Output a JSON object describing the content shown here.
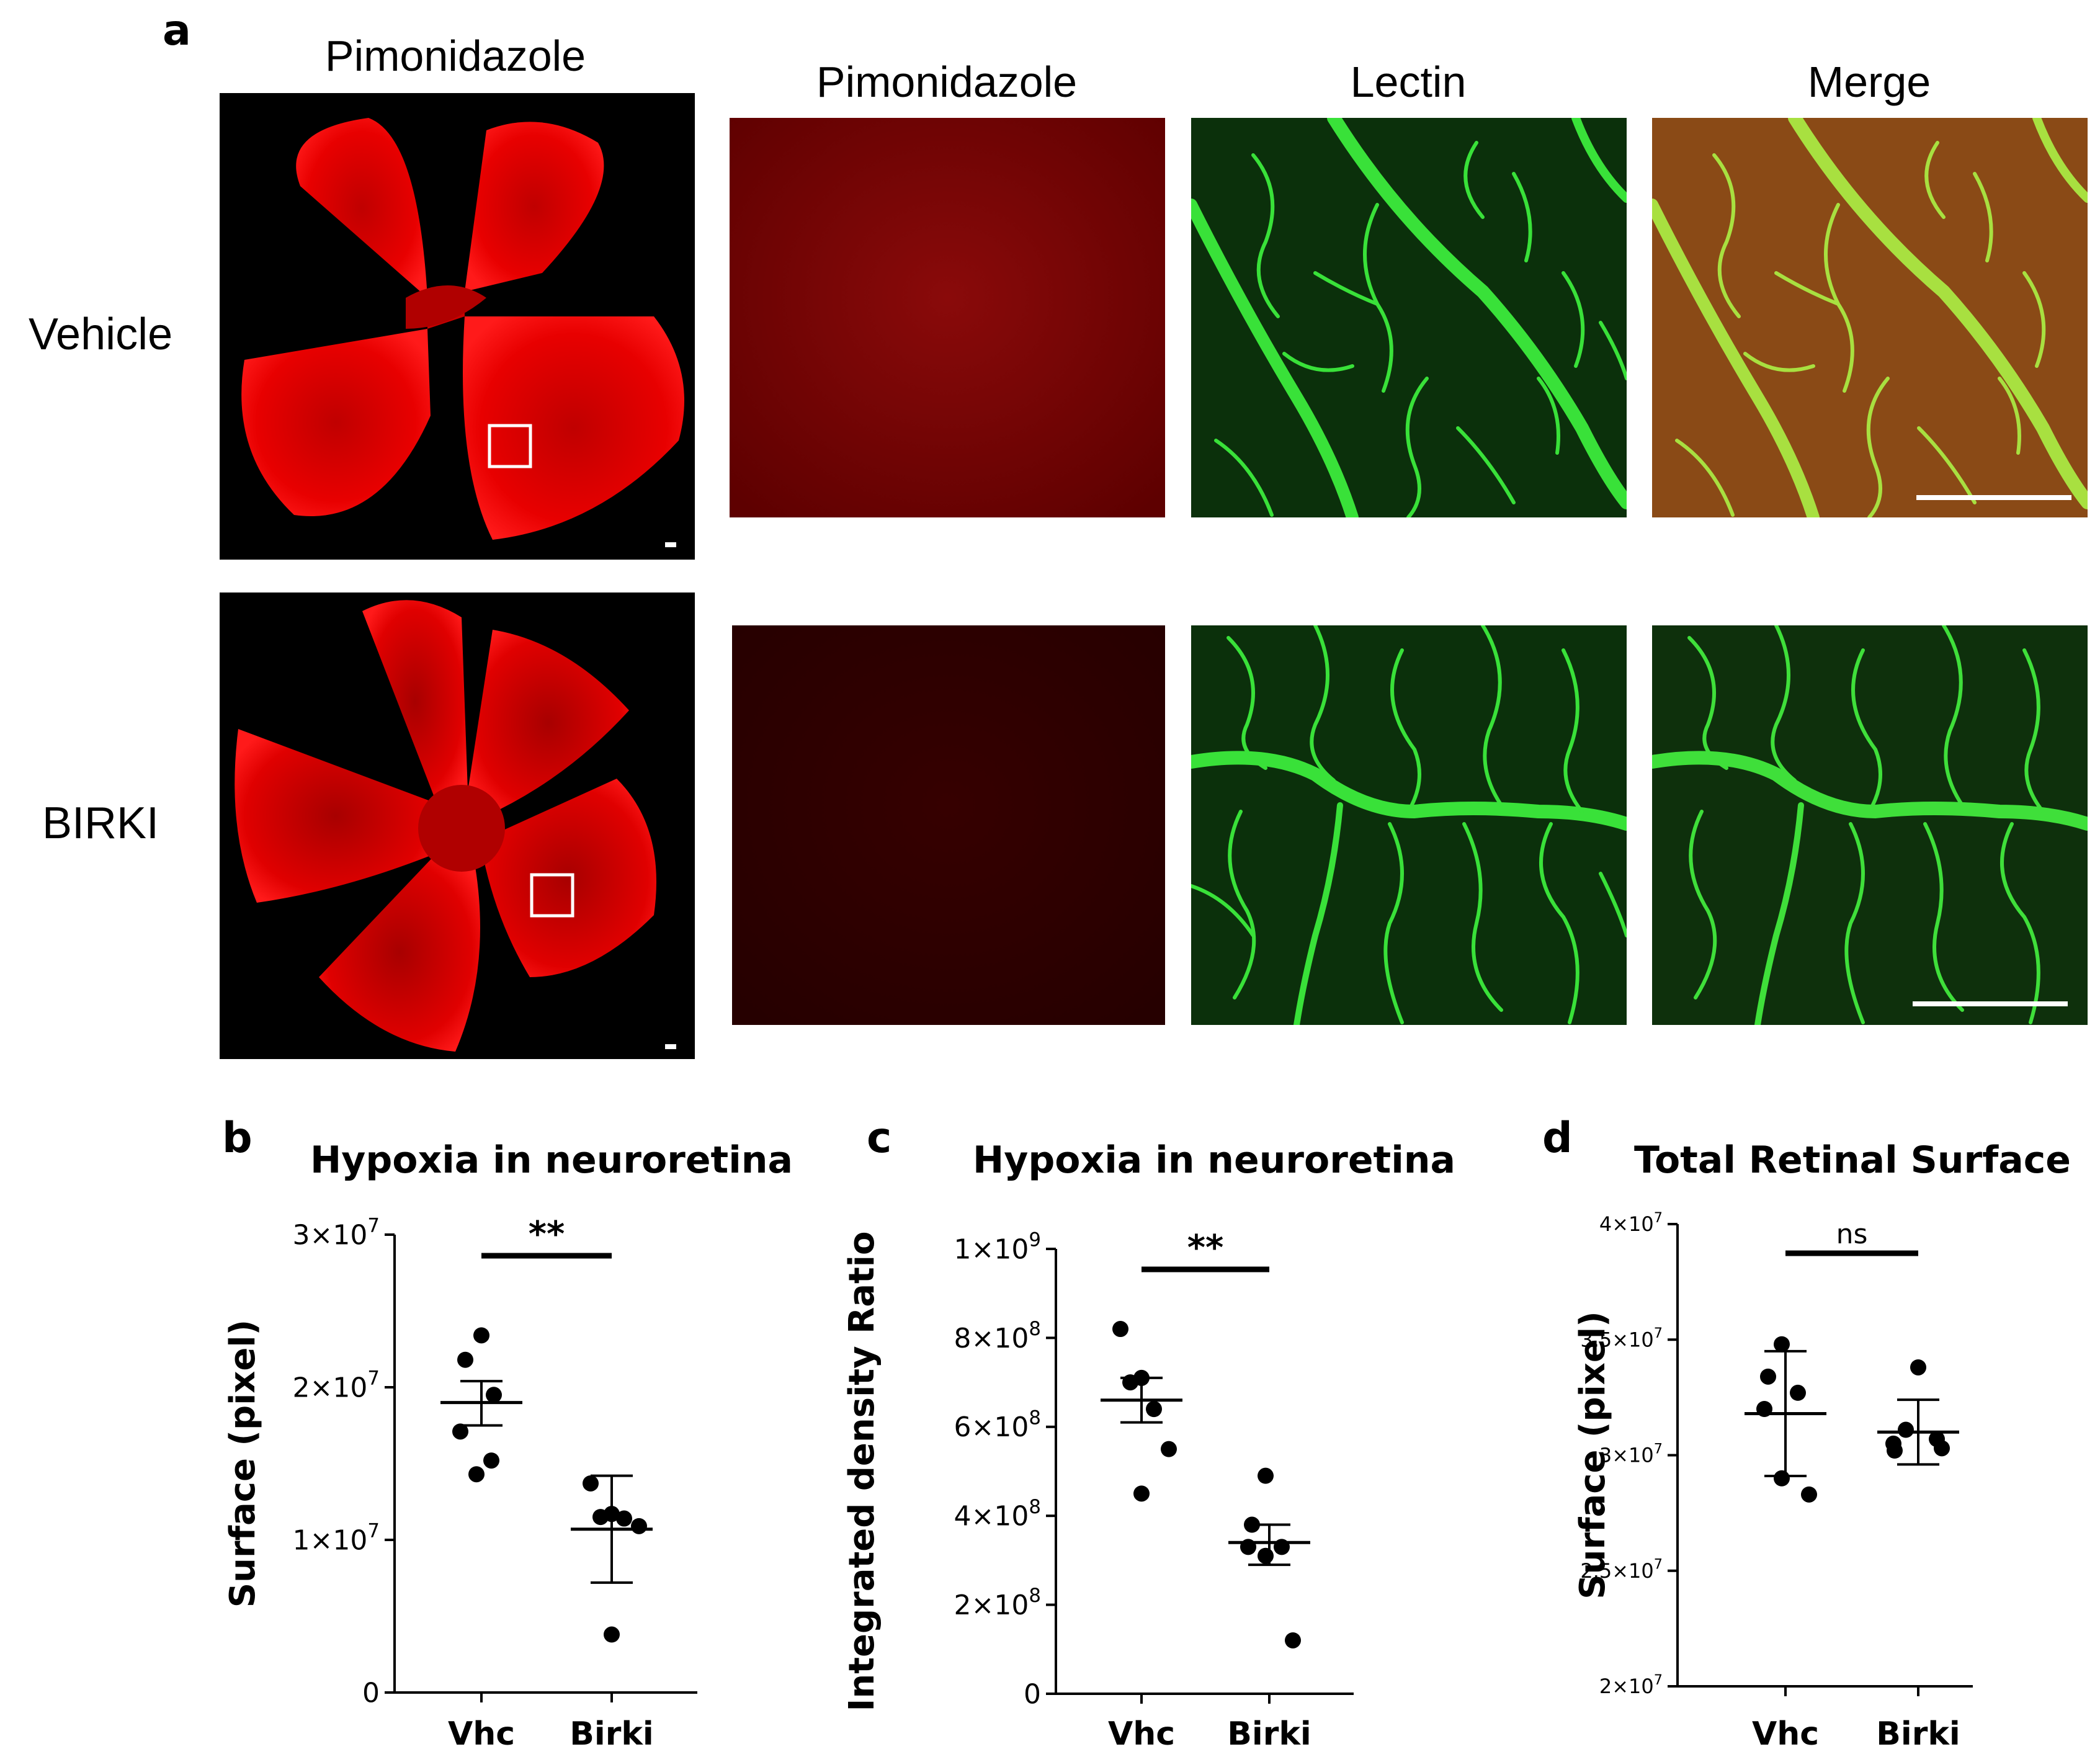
{
  "figure": {
    "panel_a": {
      "letter": "a",
      "overview_header": "Pimonidazole",
      "column_headers": [
        "Pimonidazole",
        "Lectin",
        "Merge"
      ],
      "rows": [
        {
          "label": "Vehicle",
          "stain_level": 0.55
        },
        {
          "label": "BIRKI",
          "stain_level": 0.2
        }
      ],
      "colors": {
        "pimonidazole": "#e00000",
        "lectin": "#1ecf1e",
        "background": "#000000"
      }
    },
    "panel_letters": {
      "b": "b",
      "c": "c",
      "d": "d"
    }
  },
  "chart_data": [
    {
      "type": "scatter",
      "panel": "b",
      "title": "Hypoxia in neuroretina",
      "ylabel": "Surface (pixel)",
      "xlabel": "",
      "categories": [
        "Vhc",
        "Birki"
      ],
      "ylim": [
        0,
        30000000
      ],
      "yticks": [
        0,
        10000000,
        20000000,
        30000000
      ],
      "ytick_labels": [
        {
          "base": "0",
          "exp": ""
        },
        {
          "base": "1×10",
          "exp": "7"
        },
        {
          "base": "2×10",
          "exp": "7"
        },
        {
          "base": "3×10",
          "exp": "7"
        }
      ],
      "series": [
        {
          "values": [
            23400000,
            21800000,
            19500000,
            17100000,
            15200000,
            14300000
          ]
        },
        {
          "values": [
            13700000,
            11700000,
            11500000,
            11400000,
            10900000,
            3800000
          ]
        }
      ],
      "mean": [
        19000000,
        10700000
      ],
      "error": [
        [
          17500000,
          20400000
        ],
        [
          7200000,
          14200000
        ]
      ],
      "significance": "**"
    },
    {
      "type": "scatter",
      "panel": "c",
      "title": "Hypoxia in neuroretina",
      "ylabel": "Integrated density Ratio",
      "xlabel": "",
      "categories": [
        "Vhc",
        "Birki"
      ],
      "ylim": [
        0,
        1000000000
      ],
      "yticks": [
        0,
        200000000,
        400000000,
        600000000,
        800000000,
        1000000000
      ],
      "ytick_labels": [
        {
          "base": "0",
          "exp": ""
        },
        {
          "base": "2×10",
          "exp": "8"
        },
        {
          "base": "4×10",
          "exp": "8"
        },
        {
          "base": "6×10",
          "exp": "8"
        },
        {
          "base": "8×10",
          "exp": "8"
        },
        {
          "base": "1×10",
          "exp": "9"
        }
      ],
      "series": [
        {
          "values": [
            820000000,
            710000000,
            700000000,
            640000000,
            550000000,
            450000000
          ]
        },
        {
          "values": [
            490000000,
            380000000,
            330000000,
            330000000,
            310000000,
            120000000
          ]
        }
      ],
      "mean": [
        660000000,
        340000000
      ],
      "error": [
        [
          610000000,
          710000000
        ],
        [
          290000000,
          380000000
        ]
      ],
      "significance": "**"
    },
    {
      "type": "scatter",
      "panel": "d",
      "title": "Total Retinal Surface",
      "ylabel": "Surface (pixel)",
      "xlabel": "",
      "categories": [
        "Vhc",
        "Birki"
      ],
      "ylim": [
        20000000,
        40000000
      ],
      "yticks": [
        20000000,
        25000000,
        30000000,
        35000000,
        40000000
      ],
      "ytick_labels": [
        {
          "base": "2×10",
          "exp": "7"
        },
        {
          "base": "2.5×10",
          "exp": "7"
        },
        {
          "base": "3×10",
          "exp": "7"
        },
        {
          "base": "3.5×10",
          "exp": "7"
        },
        {
          "base": "4×10",
          "exp": "7"
        }
      ],
      "series": [
        {
          "values": [
            34800000,
            33400000,
            32700000,
            32000000,
            29000000,
            28300000
          ]
        },
        {
          "values": [
            33800000,
            31100000,
            30700000,
            30500000,
            30300000,
            30200000
          ]
        }
      ],
      "mean": [
        31800000,
        31000000
      ],
      "error": [
        [
          29100000,
          34500000
        ],
        [
          29600000,
          32400000
        ]
      ],
      "significance": "ns"
    }
  ]
}
